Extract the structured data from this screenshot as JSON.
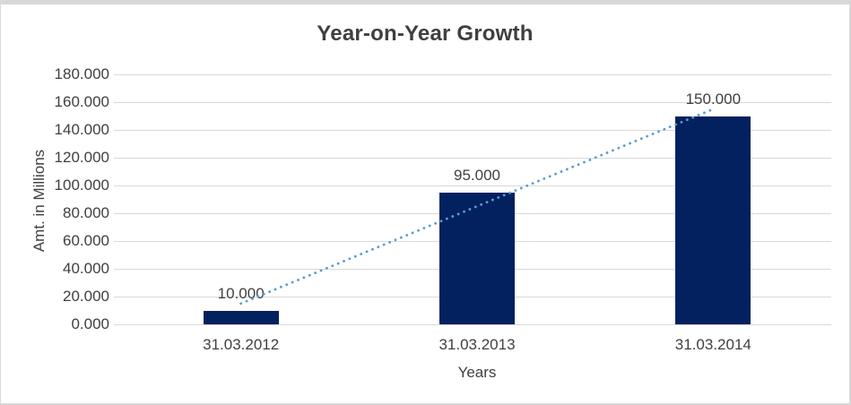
{
  "chart": {
    "colors": {
      "bar_fill": "#03215F",
      "trendline": "#5B9BD5",
      "gridline": "#D9D9D9",
      "frame_border": "#D8D8D8",
      "text": "#404040",
      "background": "#FFFFFF"
    }
  },
  "chart_data": {
    "type": "bar",
    "title": "Year-on-Year Growth",
    "xlabel": "Years",
    "ylabel": "Amt. in Millions",
    "categories": [
      "31.03.2012",
      "31.03.2013",
      "31.03.2014"
    ],
    "values": [
      10,
      95,
      150
    ],
    "data_labels": [
      "10.000",
      "95.000",
      "150.000"
    ],
    "value_unit": "millions",
    "ylim": [
      0,
      180
    ],
    "y_tick_step": 20,
    "y_tick_labels": [
      "0.000",
      "20.000",
      "40.000",
      "60.000",
      "80.000",
      "100.000",
      "120.000",
      "140.000",
      "160.000",
      "180.000"
    ],
    "grid": true,
    "legend": false,
    "trendline": {
      "type": "linear",
      "style": "dotted",
      "start_value": 15,
      "end_value": 155,
      "spans": "first category center to last category center"
    }
  }
}
